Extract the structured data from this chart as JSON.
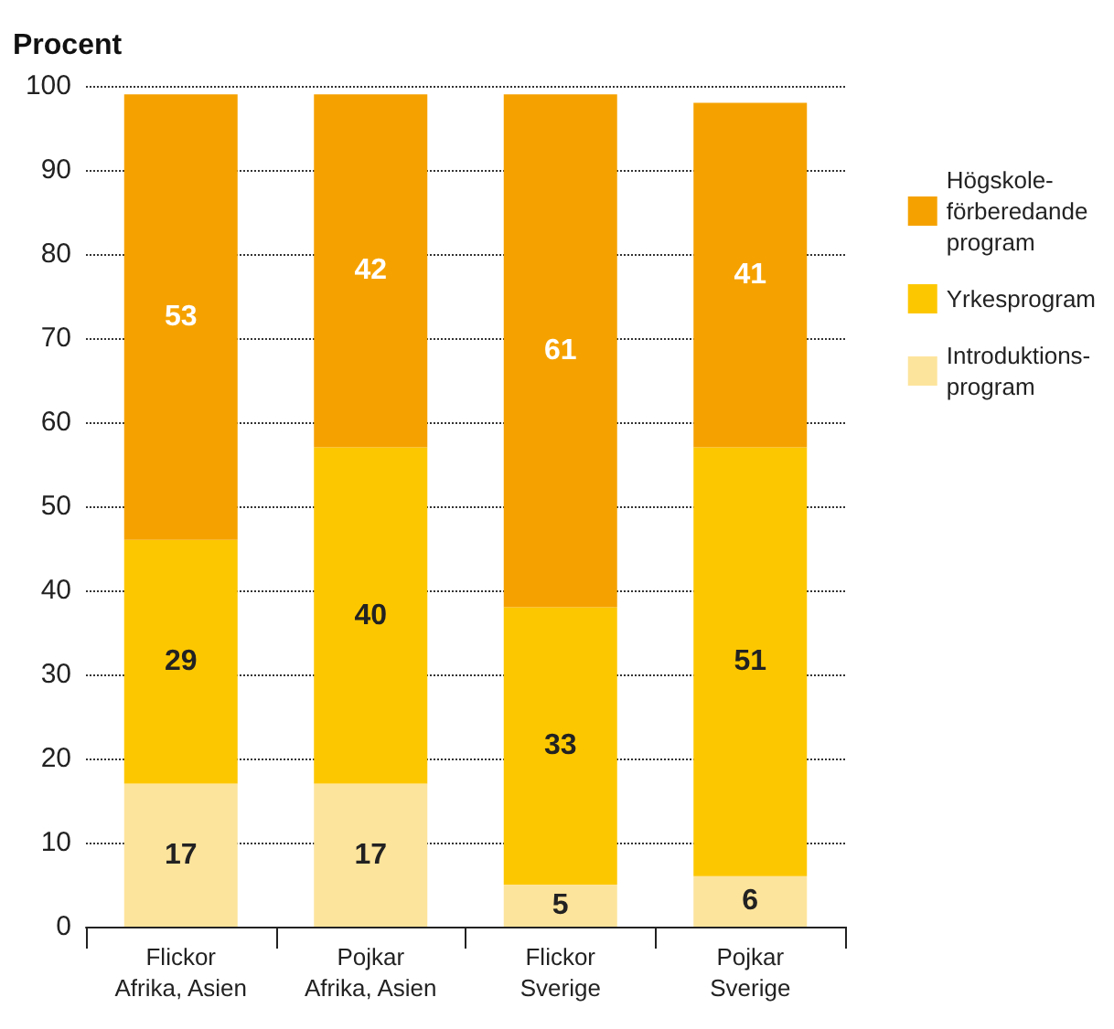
{
  "chart_data": {
    "type": "bar",
    "stacked": true,
    "ylabel": "Procent",
    "categories": [
      "Flickor\nAfrika, Asien",
      "Pojkar\nAfrika, Asien",
      "Flickor\nSverige",
      "Pojkar\nSverige"
    ],
    "series": [
      {
        "name": "Introduktions-\nprogram",
        "color": "#fde49c",
        "values": [
          17,
          17,
          5,
          6
        ]
      },
      {
        "name": "Yrkesprogram",
        "color": "#fdc700",
        "values": [
          29,
          40,
          33,
          51
        ]
      },
      {
        "name": "Högskole-\nförberedande\nprogram",
        "color": "#f5a200",
        "values": [
          53,
          42,
          61,
          41
        ]
      }
    ],
    "ylim": [
      0,
      100
    ],
    "yticks": [
      0,
      10,
      20,
      30,
      40,
      50,
      60,
      70,
      80,
      90,
      100
    ],
    "grid": "y",
    "legend": "right",
    "data_labels": true
  }
}
